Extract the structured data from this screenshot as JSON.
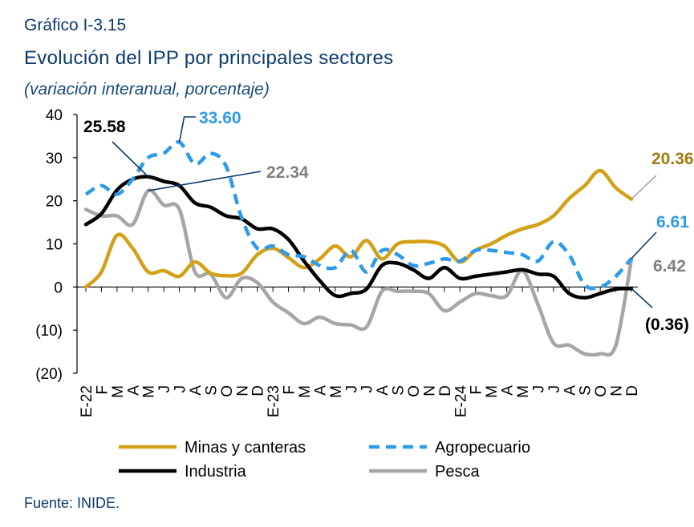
{
  "header": {
    "label": "Gráfico I-3.15",
    "title": "Evolución del IPP por principales sectores",
    "subtitle": "(variación interanual, porcentaje)"
  },
  "source": "Fuente: INIDE.",
  "chart_data": {
    "type": "line",
    "ylim": [
      -20,
      40
    ],
    "yticks": [
      {
        "value": 40,
        "label": "40"
      },
      {
        "value": 30,
        "label": "30"
      },
      {
        "value": 20,
        "label": "20"
      },
      {
        "value": 10,
        "label": "10"
      },
      {
        "value": 0,
        "label": "0"
      },
      {
        "value": -10,
        "label": "(10)"
      },
      {
        "value": -20,
        "label": "(20)"
      }
    ],
    "x_labels": [
      "E-22",
      "F",
      "M",
      "A",
      "M",
      "J",
      "J",
      "A",
      "S",
      "O",
      "N",
      "D",
      "E-23",
      "F",
      "M",
      "A",
      "M",
      "J",
      "J",
      "A",
      "S",
      "O",
      "N",
      "D",
      "E-24",
      "F",
      "M",
      "A",
      "M",
      "J",
      "J",
      "A",
      "S",
      "O",
      "N",
      "D"
    ],
    "legend_position": "bottom",
    "series": [
      {
        "name": "Minas y canteras",
        "color": "#d4a017",
        "dash": false,
        "values": [
          0,
          3.5,
          12,
          9,
          3.5,
          3.8,
          2.5,
          5.8,
          3.2,
          2.6,
          3.2,
          7.5,
          9,
          6.8,
          4.5,
          6.5,
          9.5,
          7,
          10.8,
          6.5,
          10,
          10.5,
          10.5,
          9.5,
          5.8,
          8.5,
          10,
          12,
          13.5,
          14.5,
          16.5,
          20.5,
          23.5,
          27,
          23,
          20.36
        ]
      },
      {
        "name": "Agropecuario",
        "color": "#2e9bea",
        "dash": true,
        "values": [
          21.5,
          23.5,
          21.5,
          25,
          30,
          31,
          33.6,
          28.5,
          31,
          28,
          16,
          9,
          9.5,
          7.5,
          7,
          5,
          4.5,
          8.5,
          3.5,
          8.5,
          7.5,
          5,
          5.5,
          6.5,
          6,
          8.5,
          8.5,
          8,
          7.5,
          6,
          10.5,
          7.5,
          0.5,
          0,
          2.5,
          6.61
        ]
      },
      {
        "name": "Industria",
        "color": "#000000",
        "dash": false,
        "values": [
          14.5,
          17,
          22.5,
          25,
          25.58,
          24.5,
          23.5,
          19.5,
          18.5,
          16.5,
          15.8,
          13.5,
          13.5,
          11,
          6,
          1.5,
          -2,
          -1.5,
          -0.5,
          5,
          5.5,
          4,
          2,
          4.5,
          2,
          2.5,
          3,
          3.5,
          4,
          3,
          2.5,
          -1.5,
          -2.5,
          -1.5,
          -0.5,
          -0.36
        ]
      },
      {
        "name": "Pesca",
        "color": "#a6a6a6",
        "dash": false,
        "values": [
          18,
          16.5,
          16.5,
          14.5,
          22.34,
          19,
          18,
          3.5,
          3,
          -2.5,
          2,
          1,
          -3.5,
          -6,
          -8.5,
          -7,
          -8.5,
          -8.8,
          -9.3,
          -1,
          -1,
          -1,
          -1.5,
          -5.5,
          -3.5,
          -1.5,
          -2,
          -2,
          3.8,
          -4,
          -13,
          -13.5,
          -15.5,
          -15.5,
          -13.5,
          6.42
        ]
      }
    ],
    "annotations": [
      {
        "text": "25.58",
        "series": "Industria",
        "index": 4,
        "color": "#000000"
      },
      {
        "text": "33.60",
        "series": "Agropecuario",
        "index": 6,
        "color": "#2e9bea"
      },
      {
        "text": "22.34",
        "series": "Pesca",
        "index": 4,
        "color": "#808080"
      },
      {
        "text": "20.36",
        "series": "Minas y canteras",
        "index": 35,
        "color": "#a07a10"
      },
      {
        "text": "6.61",
        "series": "Agropecuario",
        "index": 35,
        "color": "#2e9bea"
      },
      {
        "text": "6.42",
        "series": "Pesca",
        "index": 35,
        "color": "#808080"
      },
      {
        "text": "(0.36)",
        "series": "Industria",
        "index": 35,
        "color": "#000000"
      }
    ]
  }
}
